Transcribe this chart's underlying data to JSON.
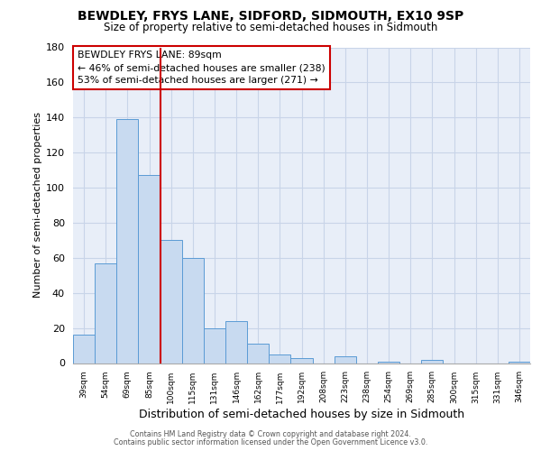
{
  "title": "BEWDLEY, FRYS LANE, SIDFORD, SIDMOUTH, EX10 9SP",
  "subtitle": "Size of property relative to semi-detached houses in Sidmouth",
  "xlabel": "Distribution of semi-detached houses by size in Sidmouth",
  "ylabel": "Number of semi-detached properties",
  "bar_labels": [
    "39sqm",
    "54sqm",
    "69sqm",
    "85sqm",
    "100sqm",
    "115sqm",
    "131sqm",
    "146sqm",
    "162sqm",
    "177sqm",
    "192sqm",
    "208sqm",
    "223sqm",
    "238sqm",
    "254sqm",
    "269sqm",
    "285sqm",
    "300sqm",
    "315sqm",
    "331sqm",
    "346sqm"
  ],
  "bar_heights": [
    16,
    57,
    139,
    107,
    70,
    60,
    20,
    24,
    11,
    5,
    3,
    0,
    4,
    0,
    1,
    0,
    2,
    0,
    0,
    0,
    1
  ],
  "bar_color": "#c8daf0",
  "bar_edge_color": "#5b9bd5",
  "bar_edge_width": 0.7,
  "ylim": [
    0,
    180
  ],
  "yticks": [
    0,
    20,
    40,
    60,
    80,
    100,
    120,
    140,
    160,
    180
  ],
  "vline_x": 4,
  "vline_color": "#cc0000",
  "annotation_title": "BEWDLEY FRYS LANE: 89sqm",
  "annotation_line1": "← 46% of semi-detached houses are smaller (238)",
  "annotation_line2": "53% of semi-detached houses are larger (271) →",
  "annotation_box_edgecolor": "#cc0000",
  "grid_color": "#c8d4e8",
  "bg_color": "#e8eef8",
  "footer1": "Contains HM Land Registry data © Crown copyright and database right 2024.",
  "footer2": "Contains public sector information licensed under the Open Government Licence v3.0."
}
